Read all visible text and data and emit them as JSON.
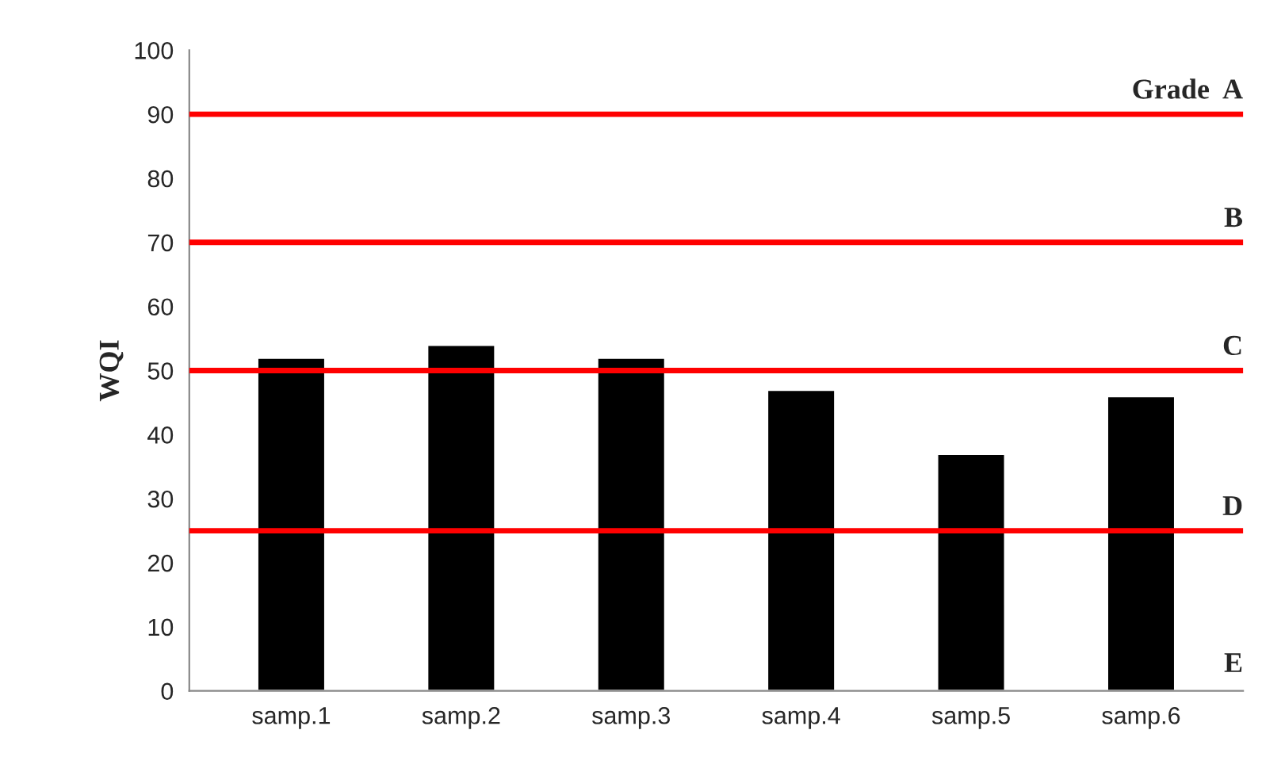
{
  "chart_data": {
    "type": "bar",
    "ylabel": "WQI",
    "categories": [
      "samp.1",
      "samp.2",
      "samp.3",
      "samp.4",
      "samp.5",
      "samp.6"
    ],
    "series": [
      {
        "color": "#000000",
        "values": [
          52,
          54,
          52,
          47,
          37,
          46
        ]
      }
    ],
    "ylim": [
      0,
      100
    ],
    "yticks": [
      0,
      10,
      20,
      30,
      40,
      50,
      60,
      70,
      80,
      90,
      100
    ],
    "grid": false,
    "legend": false,
    "ref_lines": [
      {
        "axis": "y",
        "value": 90,
        "label": "Grade  A",
        "color": "#ff0000",
        "line_style": "solid"
      },
      {
        "axis": "y",
        "value": 70,
        "label": "B",
        "color": "#ff0000",
        "line_style": "solid"
      },
      {
        "axis": "y",
        "value": 50,
        "label": "C",
        "color": "#ff0000",
        "line_style": "solid"
      },
      {
        "axis": "y",
        "value": 25,
        "label": "D",
        "color": "#ff0000",
        "line_style": "solid"
      }
    ],
    "annotations": [
      "E"
    ]
  }
}
